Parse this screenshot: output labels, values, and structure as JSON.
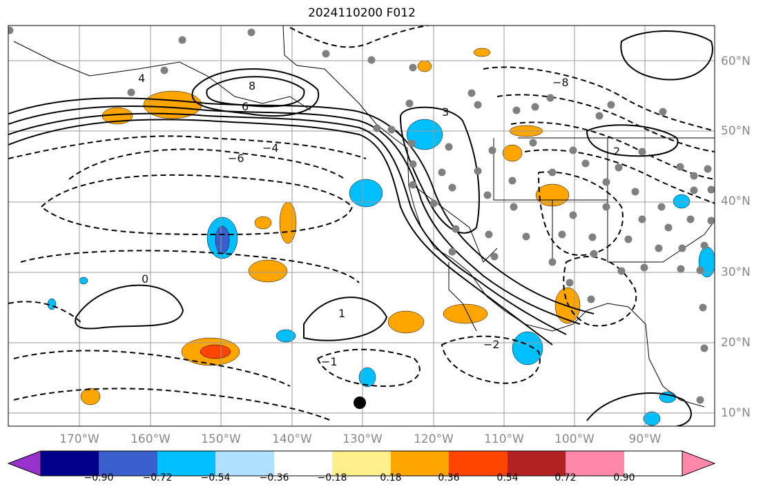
{
  "title": "2024110200 F012",
  "longitude_labels": [
    "170°W",
    "160°W",
    "150°W",
    "140°W",
    "130°W",
    "120°W",
    "110°W",
    "100°W",
    "90°W"
  ],
  "latitude_labels": [
    "60°N",
    "50°N",
    "40°N",
    "30°N",
    "20°N",
    "10°N"
  ],
  "colorbar": {
    "colors": [
      "#9932cc",
      "#00008b",
      "#3a5fcd",
      "#00bfff",
      "#afe1ff",
      "#ffffff",
      "#fff08c",
      "#ffa500",
      "#ff4500",
      "#b22222",
      "#ff88aa"
    ],
    "tick_labels": [
      "−0.90",
      "−0.72",
      "−0.54",
      "−0.36",
      "−0.18",
      "0.18",
      "0.36",
      "0.54",
      "0.72",
      "0.90"
    ]
  },
  "contour_labels": [
    "8",
    "6",
    "4",
    "3",
    "2",
    "1",
    "0",
    "−1",
    "−2",
    "−4",
    "−6",
    "−8"
  ],
  "marker_colors": {
    "station": "#808080",
    "point": "#000000"
  }
}
